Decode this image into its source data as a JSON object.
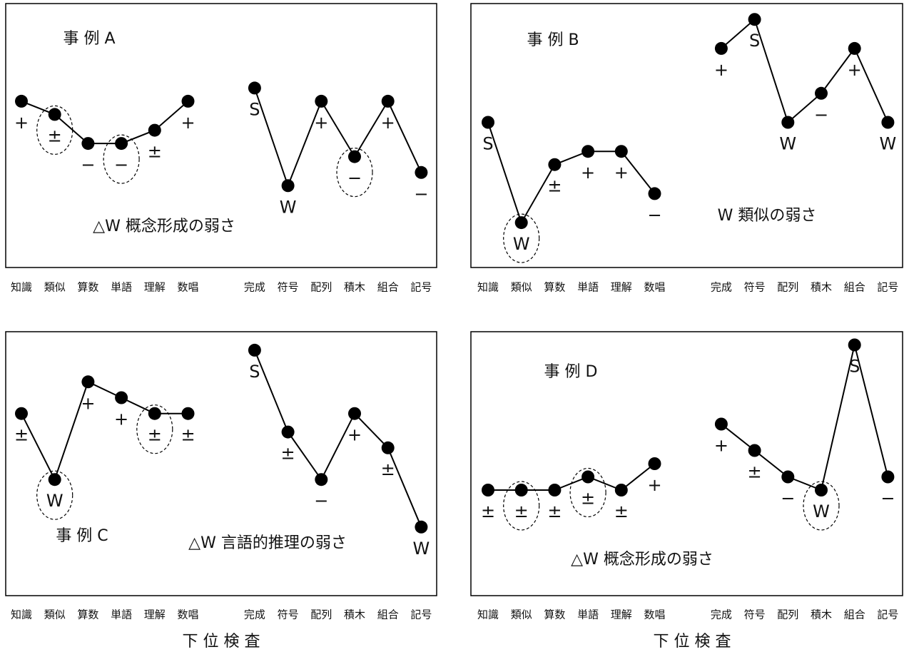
{
  "chart_data": [
    {
      "type": "line",
      "title": "事 例 A",
      "annotation": "△W 概念形成の弱さ",
      "categories": [
        "知識",
        "類似",
        "算数",
        "単語",
        "理解",
        "数唱",
        null,
        "完成",
        "符号",
        "配列",
        "積木",
        "組合",
        "記号"
      ],
      "values": [
        63,
        58,
        47,
        47,
        52,
        63,
        null,
        68,
        31,
        63,
        42,
        63,
        36
      ],
      "point_labels": [
        "+",
        "±",
        "−",
        "−",
        "±",
        "+",
        null,
        "S",
        "W",
        "+",
        "−",
        "+",
        "−"
      ],
      "circled": [
        false,
        true,
        false,
        true,
        false,
        false,
        false,
        false,
        false,
        false,
        true,
        false,
        false
      ],
      "ylim": [
        0,
        100
      ],
      "color": "#000"
    },
    {
      "type": "line",
      "title": "事 例 B",
      "annotation": "W 類似の弱さ",
      "categories": [
        "知識",
        "類似",
        "算数",
        "単語",
        "理解",
        "数唱",
        null,
        "完成",
        "符号",
        "配列",
        "積木",
        "組合",
        "記号"
      ],
      "values": [
        55,
        17,
        39,
        44,
        44,
        28,
        null,
        83,
        94,
        55,
        66,
        83,
        55
      ],
      "point_labels": [
        "S",
        "W",
        "±",
        "+",
        "+",
        "−",
        null,
        "+",
        "S",
        "W",
        "−",
        "+",
        "W"
      ],
      "circled": [
        false,
        true,
        false,
        false,
        false,
        false,
        false,
        false,
        false,
        false,
        false,
        false,
        false
      ],
      "ylim": [
        0,
        100
      ],
      "color": "#000"
    },
    {
      "type": "line",
      "title": "事 例 C",
      "annotation": "△W 言語的推理の弱さ",
      "categories": [
        "知識",
        "類似",
        "算数",
        "単語",
        "理解",
        "数唱",
        null,
        "完成",
        "符号",
        "配列",
        "積木",
        "組合",
        "記号"
      ],
      "values": [
        69,
        44,
        81,
        75,
        69,
        69,
        null,
        93,
        62,
        44,
        69,
        56,
        26
      ],
      "point_labels": [
        "±",
        "W",
        "+",
        "+",
        "±",
        "±",
        null,
        "S",
        "±",
        "−",
        "+",
        "±",
        "W"
      ],
      "circled": [
        false,
        true,
        false,
        false,
        true,
        false,
        false,
        false,
        false,
        false,
        false,
        false,
        false
      ],
      "ylim": [
        0,
        100
      ],
      "color": "#000",
      "xlabel": "下 位 検 査"
    },
    {
      "type": "line",
      "title": "事 例 D",
      "annotation": "△W 概念形成の弱さ",
      "categories": [
        "知識",
        "類似",
        "算数",
        "単語",
        "理解",
        "数唱",
        null,
        "完成",
        "符号",
        "配列",
        "積木",
        "組合",
        "記号"
      ],
      "values": [
        40,
        40,
        40,
        45,
        40,
        50,
        null,
        65,
        55,
        45,
        40,
        95,
        45
      ],
      "point_labels": [
        "±",
        "±",
        "±",
        "±",
        "±",
        "+",
        null,
        "+",
        "±",
        "−",
        "W",
        "S",
        "−"
      ],
      "circled": [
        false,
        true,
        false,
        true,
        false,
        false,
        false,
        false,
        false,
        false,
        true,
        false,
        false
      ],
      "ylim": [
        0,
        100
      ],
      "color": "#000",
      "xlabel": "下 位 検 査"
    }
  ]
}
